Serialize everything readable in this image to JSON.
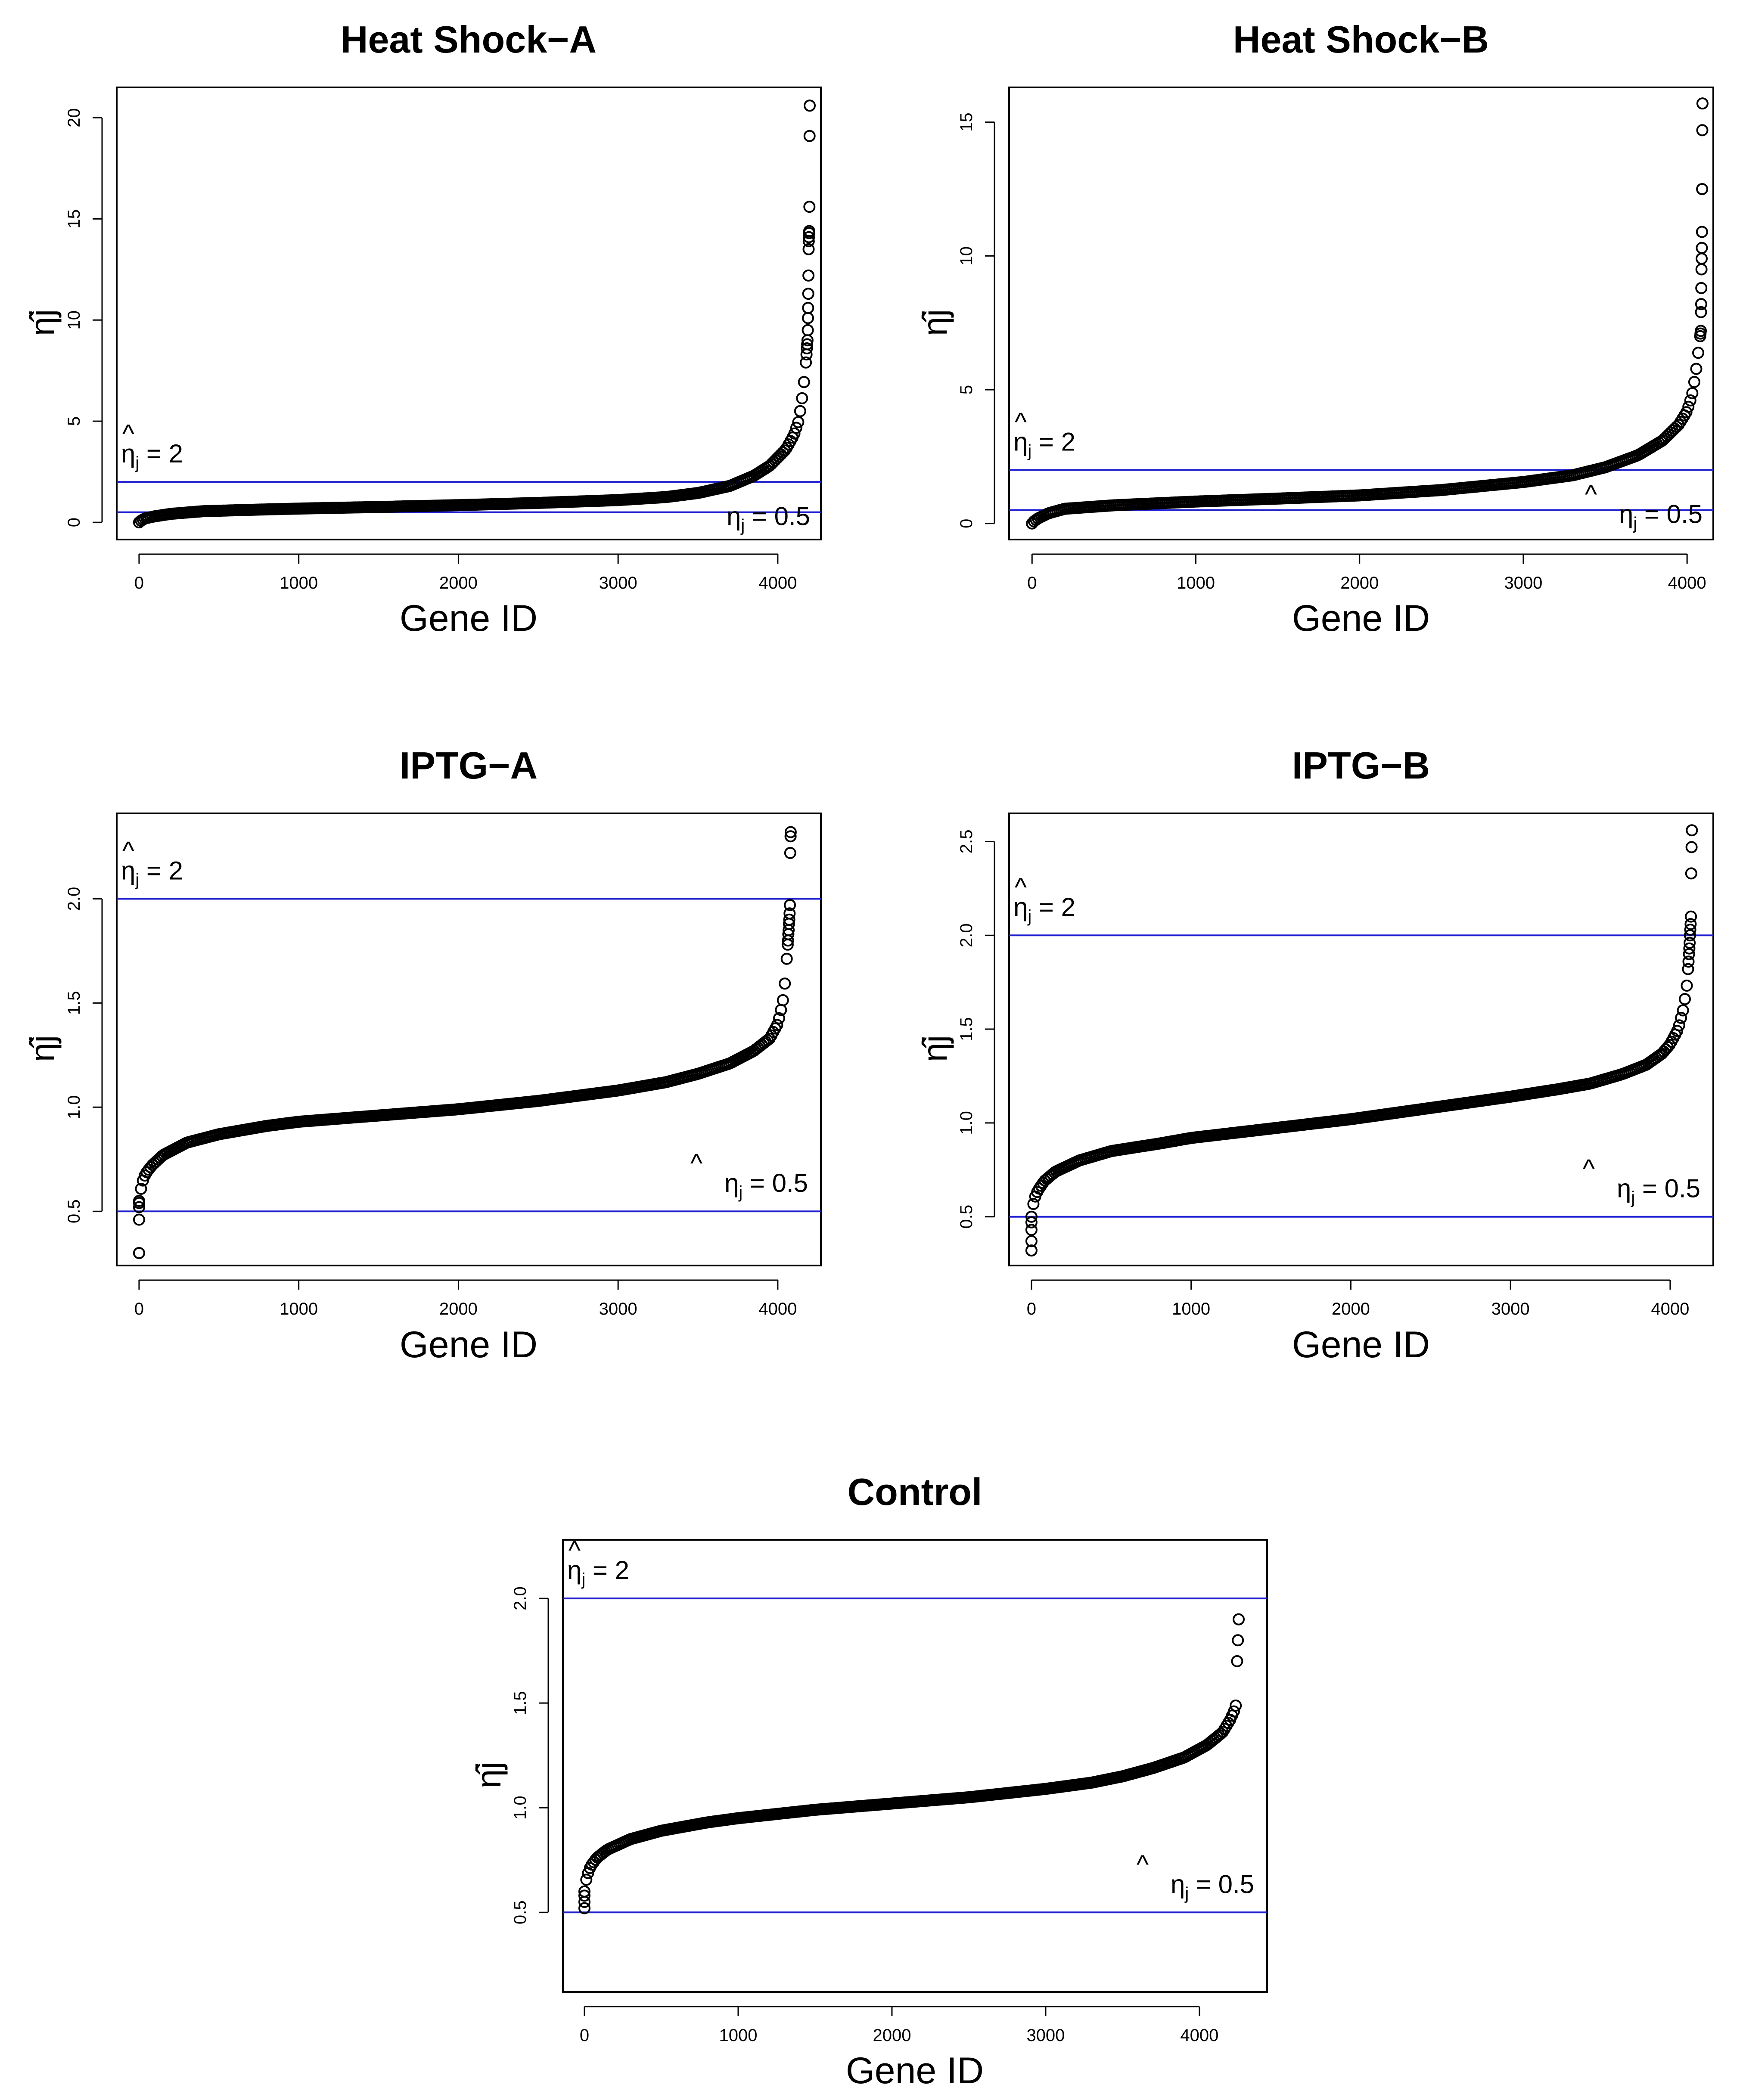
{
  "chart_data": [
    {
      "type": "scatter",
      "title": "Heat Shock−A",
      "xlabel": "Gene ID",
      "ylabel": "η̂j",
      "xlim": [
        -140,
        4270
      ],
      "ylim": [
        -0.85,
        21.5
      ],
      "xticks": [
        "0",
        "1000",
        "2000",
        "3000",
        "4000"
      ],
      "yticks": [
        "0",
        "5",
        "10",
        "15",
        "20"
      ],
      "n": 4199,
      "reference_lines": [
        2,
        0.5
      ],
      "annotations": [
        {
          "text": "η̂j = 2",
          "base": "η",
          "hat": "^",
          "sub": "j",
          "rest": " = 2",
          "anchor": "top-left"
        },
        {
          "text": "η̂j = 0.5",
          "base": "η",
          "hat": "^",
          "sub": "j",
          "rest": " = 0.5",
          "anchor": "bottom-right"
        }
      ],
      "curve": [
        [
          0,
          0.0
        ],
        [
          15,
          0.1
        ],
        [
          40,
          0.2
        ],
        [
          100,
          0.3
        ],
        [
          200,
          0.42
        ],
        [
          400,
          0.55
        ],
        [
          700,
          0.62
        ],
        [
          1000,
          0.68
        ],
        [
          1500,
          0.76
        ],
        [
          2000,
          0.85
        ],
        [
          2500,
          0.96
        ],
        [
          3000,
          1.1
        ],
        [
          3300,
          1.25
        ],
        [
          3500,
          1.45
        ],
        [
          3700,
          1.8
        ],
        [
          3850,
          2.3
        ],
        [
          3950,
          2.8
        ],
        [
          4050,
          3.6
        ],
        [
          4100,
          4.3
        ],
        [
          4130,
          5.0
        ],
        [
          4150,
          6.0
        ],
        [
          4165,
          7.0
        ],
        [
          4172,
          7.5
        ],
        [
          4177,
          8.0
        ]
      ],
      "outliers": [
        [
          4180,
          8.3
        ],
        [
          4182,
          8.6
        ],
        [
          4184,
          8.8
        ],
        [
          4186,
          9.0
        ],
        [
          4188,
          9.5
        ],
        [
          4189,
          10.1
        ],
        [
          4190,
          10.6
        ],
        [
          4191,
          11.3
        ],
        [
          4192,
          12.2
        ],
        [
          4193,
          13.5
        ],
        [
          4194,
          13.9
        ],
        [
          4195,
          14.1
        ],
        [
          4196,
          14.3
        ],
        [
          4197,
          14.4
        ],
        [
          4198,
          15.6
        ],
        [
          4199,
          19.1
        ],
        [
          4200,
          20.6
        ]
      ]
    },
    {
      "type": "scatter",
      "title": "Heat Shock−B",
      "xlabel": "Gene ID",
      "ylabel": "η̂j",
      "xlim": [
        -140,
        4160
      ],
      "ylim": [
        -0.6,
        16.3
      ],
      "xticks": [
        "0",
        "1000",
        "2000",
        "3000",
        "4000"
      ],
      "yticks": [
        "0",
        "5",
        "10",
        "15"
      ],
      "n": 4094,
      "reference_lines": [
        2,
        0.5
      ],
      "annotations": [
        {
          "text": "η̂j = 2",
          "base": "η",
          "hat": "^",
          "sub": "j",
          "rest": " = 2",
          "anchor": "top-left"
        },
        {
          "text": "η̂j = 0.5",
          "base": "η",
          "hat": "^",
          "sub": "j",
          "rest": " = 0.5",
          "anchor": "bottom-right"
        }
      ],
      "curve": [
        [
          0,
          0.0
        ],
        [
          15,
          0.1
        ],
        [
          40,
          0.2
        ],
        [
          100,
          0.38
        ],
        [
          200,
          0.55
        ],
        [
          500,
          0.68
        ],
        [
          1000,
          0.82
        ],
        [
          1500,
          0.93
        ],
        [
          2000,
          1.05
        ],
        [
          2500,
          1.25
        ],
        [
          3000,
          1.55
        ],
        [
          3300,
          1.8
        ],
        [
          3500,
          2.1
        ],
        [
          3700,
          2.55
        ],
        [
          3850,
          3.1
        ],
        [
          3950,
          3.7
        ],
        [
          4000,
          4.2
        ],
        [
          4030,
          4.8
        ],
        [
          4050,
          5.5
        ],
        [
          4065,
          6.2
        ],
        [
          4075,
          6.8
        ],
        [
          4080,
          7.0
        ]
      ],
      "outliers": [
        [
          4082,
          7.1
        ],
        [
          4084,
          7.2
        ],
        [
          4085,
          7.9
        ],
        [
          4086,
          8.2
        ],
        [
          4087,
          8.8
        ],
        [
          4088,
          9.5
        ],
        [
          4089,
          9.9
        ],
        [
          4090,
          10.3
        ],
        [
          4091,
          10.9
        ],
        [
          4092,
          12.5
        ],
        [
          4093,
          14.7
        ],
        [
          4094,
          15.7
        ]
      ]
    },
    {
      "type": "scatter",
      "title": "IPTG−A",
      "xlabel": "Gene ID",
      "ylabel": "η̂j",
      "xlim": [
        -140,
        4270
      ],
      "ylim": [
        0.24,
        2.41
      ],
      "xticks": [
        "0",
        "1000",
        "2000",
        "3000",
        "4000"
      ],
      "yticks": [
        "0.5",
        "1.0",
        "1.5",
        "2.0"
      ],
      "n": 4087,
      "reference_lines": [
        2,
        0.5
      ],
      "annotations": [
        {
          "text": "η̂j = 2",
          "base": "η",
          "hat": "^",
          "sub": "j",
          "rest": " = 2",
          "anchor": "top-left"
        },
        {
          "text": "η̂j = 0.5",
          "base": "η",
          "hat": "^",
          "sub": "j",
          "rest": " = 0.5",
          "anchor": "top-right"
        }
      ],
      "curve": [
        [
          0,
          0.55
        ],
        [
          10,
          0.6
        ],
        [
          20,
          0.64
        ],
        [
          40,
          0.68
        ],
        [
          80,
          0.72
        ],
        [
          150,
          0.77
        ],
        [
          300,
          0.83
        ],
        [
          500,
          0.87
        ],
        [
          800,
          0.91
        ],
        [
          1000,
          0.93
        ],
        [
          1500,
          0.96
        ],
        [
          2000,
          0.99
        ],
        [
          2500,
          1.03
        ],
        [
          3000,
          1.08
        ],
        [
          3300,
          1.12
        ],
        [
          3500,
          1.16
        ],
        [
          3700,
          1.21
        ],
        [
          3850,
          1.27
        ],
        [
          3950,
          1.33
        ],
        [
          4000,
          1.4
        ],
        [
          4030,
          1.5
        ],
        [
          4045,
          1.6
        ],
        [
          4055,
          1.7
        ],
        [
          4060,
          1.76
        ]
      ],
      "outliers": [
        [
          0,
          0.3
        ],
        [
          0,
          0.46
        ],
        [
          0,
          0.52
        ],
        [
          0,
          0.54
        ],
        [
          4062,
          1.78
        ],
        [
          4064,
          1.8
        ],
        [
          4066,
          1.83
        ],
        [
          4068,
          1.85
        ],
        [
          4070,
          1.88
        ],
        [
          4072,
          1.9
        ],
        [
          4074,
          1.93
        ],
        [
          4076,
          1.97
        ],
        [
          4078,
          2.22
        ],
        [
          4080,
          2.3
        ],
        [
          4081,
          2.32
        ]
      ]
    },
    {
      "type": "scatter",
      "title": "IPTG−B",
      "xlabel": "Gene ID",
      "ylabel": "η̂j",
      "xlim": [
        -140,
        4270
      ],
      "ylim": [
        0.24,
        2.65
      ],
      "xticks": [
        "0",
        "1000",
        "2000",
        "3000",
        "4000"
      ],
      "yticks": [
        "0.5",
        "1.0",
        "1.5",
        "2.0",
        "2.5"
      ],
      "n": 4136,
      "reference_lines": [
        2,
        0.5
      ],
      "annotations": [
        {
          "text": "η̂j = 2",
          "base": "η",
          "hat": "^",
          "sub": "j",
          "rest": " = 2",
          "anchor": "top-left"
        },
        {
          "text": "η̂j = 0.5",
          "base": "η",
          "hat": "^",
          "sub": "j",
          "rest": " = 0.5",
          "anchor": "top-right"
        }
      ],
      "curve": [
        [
          0,
          0.5
        ],
        [
          10,
          0.56
        ],
        [
          20,
          0.6
        ],
        [
          40,
          0.64
        ],
        [
          80,
          0.69
        ],
        [
          150,
          0.74
        ],
        [
          300,
          0.8
        ],
        [
          500,
          0.85
        ],
        [
          800,
          0.89
        ],
        [
          1000,
          0.92
        ],
        [
          1500,
          0.97
        ],
        [
          2000,
          1.02
        ],
        [
          2500,
          1.08
        ],
        [
          3000,
          1.14
        ],
        [
          3300,
          1.18
        ],
        [
          3500,
          1.21
        ],
        [
          3700,
          1.26
        ],
        [
          3850,
          1.31
        ],
        [
          3950,
          1.37
        ],
        [
          4000,
          1.42
        ],
        [
          4050,
          1.5
        ],
        [
          4080,
          1.6
        ],
        [
          4100,
          1.7
        ],
        [
          4110,
          1.78
        ]
      ],
      "outliers": [
        [
          0,
          0.32
        ],
        [
          0,
          0.37
        ],
        [
          0,
          0.43
        ],
        [
          0,
          0.47
        ],
        [
          4112,
          1.82
        ],
        [
          4115,
          1.86
        ],
        [
          4118,
          1.9
        ],
        [
          4120,
          1.93
        ],
        [
          4122,
          1.96
        ],
        [
          4124,
          2.0
        ],
        [
          4126,
          2.03
        ],
        [
          4128,
          2.06
        ],
        [
          4130,
          2.1
        ],
        [
          4132,
          2.33
        ],
        [
          4134,
          2.47
        ],
        [
          4136,
          2.56
        ]
      ]
    },
    {
      "type": "scatter",
      "title": "Control",
      "xlabel": "Gene ID",
      "ylabel": "η̂j",
      "xlim": [
        -140,
        4440
      ],
      "ylim": [
        0.12,
        2.28
      ],
      "xticks": [
        "0",
        "1000",
        "2000",
        "3000",
        "4000"
      ],
      "yticks": [
        "0.5",
        "1.0",
        "1.5",
        "2.0"
      ],
      "n": 4264,
      "reference_lines": [
        2,
        0.5
      ],
      "annotations": [
        {
          "text": "η̂j = 2",
          "base": "η",
          "hat": "^",
          "sub": "j",
          "rest": " = 2",
          "anchor": "top-left"
        },
        {
          "text": "η̂j = 0.5",
          "base": "η",
          "hat": "^",
          "sub": "j",
          "rest": " = 0.5",
          "anchor": "top-right"
        }
      ],
      "curve": [
        [
          0,
          0.6
        ],
        [
          10,
          0.65
        ],
        [
          20,
          0.68
        ],
        [
          40,
          0.72
        ],
        [
          80,
          0.76
        ],
        [
          150,
          0.8
        ],
        [
          300,
          0.85
        ],
        [
          500,
          0.89
        ],
        [
          800,
          0.93
        ],
        [
          1000,
          0.95
        ],
        [
          1500,
          0.99
        ],
        [
          2000,
          1.02
        ],
        [
          2500,
          1.05
        ],
        [
          3000,
          1.09
        ],
        [
          3300,
          1.12
        ],
        [
          3500,
          1.15
        ],
        [
          3700,
          1.19
        ],
        [
          3900,
          1.24
        ],
        [
          4050,
          1.3
        ],
        [
          4150,
          1.36
        ],
        [
          4200,
          1.42
        ],
        [
          4230,
          1.47
        ],
        [
          4240,
          1.5
        ]
      ],
      "outliers": [
        [
          0,
          0.52
        ],
        [
          0,
          0.55
        ],
        [
          0,
          0.58
        ],
        [
          4245,
          1.7
        ],
        [
          4250,
          1.8
        ],
        [
          4255,
          1.9
        ]
      ]
    }
  ]
}
